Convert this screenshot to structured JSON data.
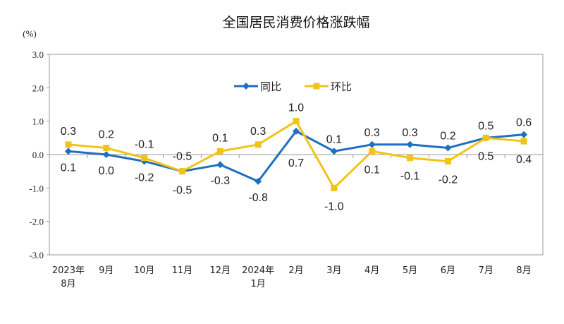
{
  "chart_data": {
    "type": "line",
    "title": "全国居民消费价格涨跌幅",
    "ylabel": "(%)",
    "ylim": [
      -3.0,
      3.0
    ],
    "yticks": [
      "3.0",
      "2.0",
      "1.0",
      "0.0",
      "-1.0",
      "-2.0",
      "-3.0"
    ],
    "categories": [
      [
        "2023年",
        "8月"
      ],
      [
        "9月"
      ],
      [
        "10月"
      ],
      [
        "11月"
      ],
      [
        "12月"
      ],
      [
        "2024年",
        "1月"
      ],
      [
        "2月"
      ],
      [
        "3月"
      ],
      [
        "4月"
      ],
      [
        "5月"
      ],
      [
        "6月"
      ],
      [
        "7月"
      ],
      [
        "8月"
      ]
    ],
    "series": [
      {
        "name": "同比",
        "color": "#1F6FC0",
        "marker": "diamond",
        "values": [
          0.1,
          0.0,
          -0.2,
          -0.5,
          -0.3,
          -0.8,
          0.7,
          0.1,
          0.3,
          0.3,
          0.2,
          0.5,
          0.6
        ],
        "labels": [
          "0.1",
          "0.0",
          "-0.2",
          "-0.5",
          "-0.3",
          "-0.8",
          "0.7",
          "0.1",
          "0.3",
          "0.3",
          "0.2",
          "0.5",
          "0.6"
        ]
      },
      {
        "name": "环比",
        "color": "#F2C419",
        "marker": "square",
        "values": [
          0.3,
          0.2,
          -0.1,
          -0.5,
          0.1,
          0.3,
          1.0,
          -1.0,
          0.1,
          -0.1,
          -0.2,
          0.5,
          0.4
        ],
        "labels": [
          "0.3",
          "0.2",
          "-0.1",
          "-0.5",
          "0.1",
          "0.3",
          "1.0",
          "-1.0",
          "0.1",
          "-0.1",
          "-0.2",
          "0.5",
          "0.4"
        ]
      }
    ],
    "legend": "top-center",
    "grid": false
  }
}
